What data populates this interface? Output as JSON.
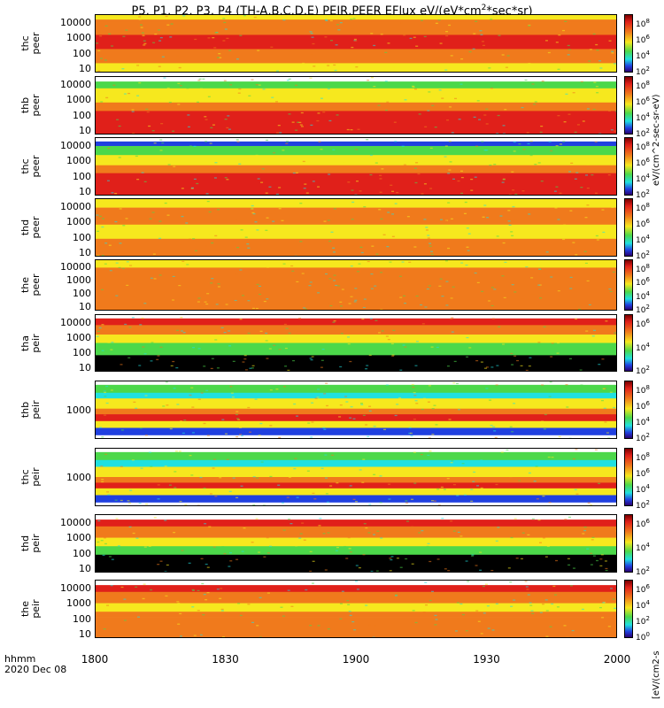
{
  "title_main": "P5, P1, P2, P3, P4 (TH-A,B,C,D,E) PEIR,PEER EFlux eV/(eV*cm",
  "title_sup": "2",
  "title_tail": "*sec*sr)",
  "colors": {
    "red": "#e0201a",
    "orange": "#f07a1c",
    "yellow": "#f6e81e",
    "green": "#4cd84a",
    "cyan": "#20e0e0",
    "blue": "#2040e0",
    "black": "#000000"
  },
  "chart_data": {
    "type": "heatmap",
    "title": "P5, P1, P2, P3, P4 (TH-A,B,C,D,E) PEIR,PEER EFlux eV/(eV*cm2*sec*sr)",
    "x_ticks": [
      "1800",
      "1830",
      "1900",
      "1930",
      "2000"
    ],
    "x_label_1": "hhmm",
    "x_label_2": "2020 Dec 08",
    "colorbar_unit_top": "eV/(cm^2-sec-sr-eV)",
    "colorbar_unit_bottom": "[eV/(cm2-s",
    "panels": [
      {
        "label1": "thc",
        "label2": "peer",
        "yticks": [
          "10000",
          "1000",
          "100",
          "10"
        ],
        "cb": [
          "8",
          "6",
          "4",
          "2"
        ]
      },
      {
        "label1": "thb",
        "label2": "peer",
        "yticks": [
          "10000",
          "1000",
          "100",
          "10"
        ],
        "cb": [
          "8",
          "6",
          "4",
          "2"
        ]
      },
      {
        "label1": "thc",
        "label2": "peer",
        "yticks": [
          "10000",
          "1000",
          "100",
          "10"
        ],
        "cb": [
          "8",
          "6",
          "4",
          "2"
        ]
      },
      {
        "label1": "thd",
        "label2": "peer",
        "yticks": [
          "10000",
          "1000",
          "100",
          "10"
        ],
        "cb": [
          "8",
          "6",
          "4",
          "2"
        ]
      },
      {
        "label1": "the",
        "label2": "peer",
        "yticks": [
          "10000",
          "1000",
          "100",
          "10"
        ],
        "cb": [
          "8",
          "6",
          "4",
          "2"
        ]
      },
      {
        "label1": "tha",
        "label2": "peir",
        "yticks": [
          "10000",
          "1000",
          "100",
          "10"
        ],
        "cb": [
          "6",
          "4",
          "2"
        ]
      },
      {
        "label1": "thb",
        "label2": "peir",
        "yticks": [
          "1000"
        ],
        "cb": [
          "8",
          "6",
          "4",
          "2"
        ]
      },
      {
        "label1": "thc",
        "label2": "peir",
        "yticks": [
          "1000"
        ],
        "cb": [
          "8",
          "6",
          "4",
          "2"
        ]
      },
      {
        "label1": "thd",
        "label2": "peir",
        "yticks": [
          "10000",
          "1000",
          "100",
          "10"
        ],
        "cb": [
          "6",
          "4",
          "2"
        ]
      },
      {
        "label1": "the",
        "label2": "peir",
        "yticks": [
          "10000",
          "1000",
          "100",
          "10"
        ],
        "cb": [
          "6",
          "4",
          "2",
          "0"
        ]
      }
    ]
  }
}
